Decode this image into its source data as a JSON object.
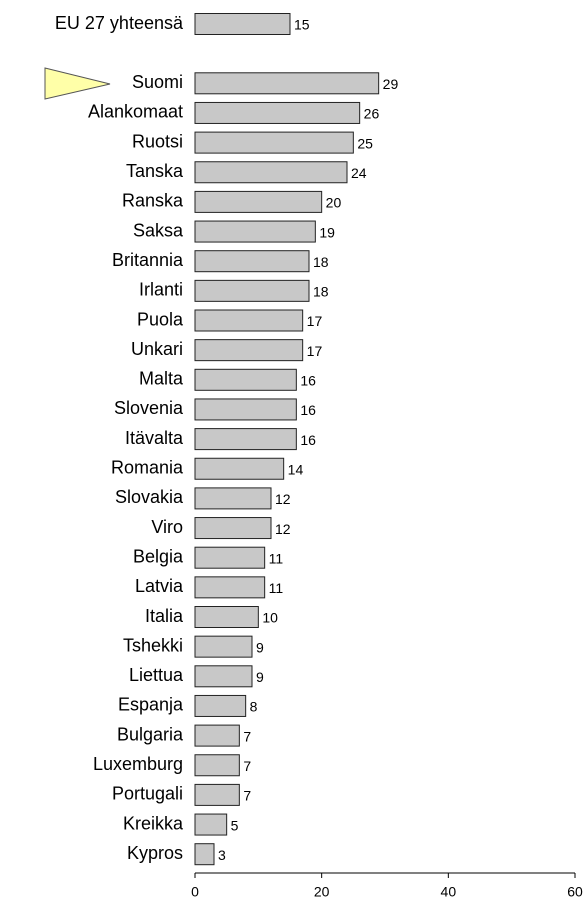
{
  "chart_data": {
    "type": "bar",
    "orientation": "horizontal",
    "categories": [
      "EU 27 yhteensä",
      null,
      "Suomi",
      "Alankomaat",
      "Ruotsi",
      "Tanska",
      "Ranska",
      "Saksa",
      "Britannia",
      "Irlanti",
      "Puola",
      "Unkari",
      "Malta",
      "Slovenia",
      "Itävalta",
      "Romania",
      "Slovakia",
      "Viro",
      "Belgia",
      "Latvia",
      "Italia",
      "Tshekki",
      "Liettua",
      "Espanja",
      "Bulgaria",
      "Luxemburg",
      "Portugali",
      "Kreikka",
      "Kypros"
    ],
    "values": [
      15,
      null,
      29,
      26,
      25,
      24,
      20,
      19,
      18,
      18,
      17,
      17,
      16,
      16,
      16,
      14,
      12,
      12,
      11,
      11,
      10,
      9,
      9,
      8,
      7,
      7,
      7,
      5,
      3
    ],
    "color": "#c8c8c8",
    "xlim": [
      0,
      60
    ],
    "xticks": [
      0,
      20,
      40,
      60
    ]
  }
}
